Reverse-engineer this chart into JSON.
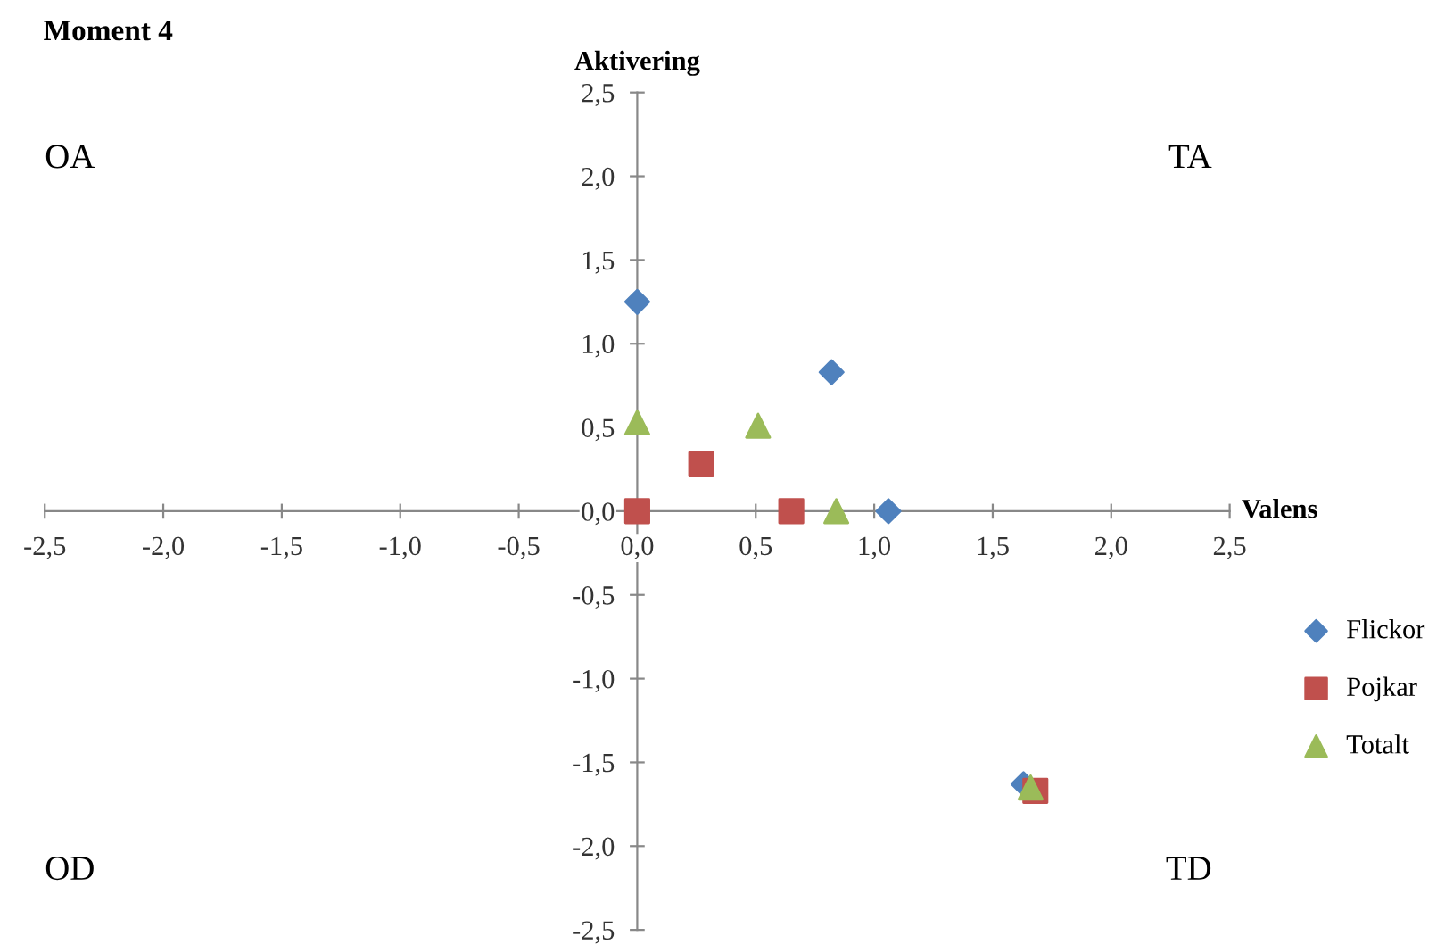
{
  "chart_data": {
    "type": "scatter",
    "title": "Moment 4",
    "xlabel": "Valens",
    "ylabel": "Aktivering",
    "annotations": [
      "OA",
      "TA",
      "OD",
      "TD"
    ],
    "xlim": [
      -2.5,
      2.5
    ],
    "ylim": [
      -2.5,
      2.5
    ],
    "xticks": [
      {
        "value": -2.5,
        "label": "-2,5"
      },
      {
        "value": -2.0,
        "label": "-2,0"
      },
      {
        "value": -1.5,
        "label": "-1,5"
      },
      {
        "value": -1.0,
        "label": "-1,0"
      },
      {
        "value": -0.5,
        "label": "-0,5"
      },
      {
        "value": 0,
        "label": "0,0"
      },
      {
        "value": 0.5,
        "label": "0,5"
      },
      {
        "value": 1.0,
        "label": "1,0"
      },
      {
        "value": 1.5,
        "label": "1,5"
      },
      {
        "value": 2.0,
        "label": "2,0"
      },
      {
        "value": 2.5,
        "label": "2,5"
      }
    ],
    "yticks": [
      {
        "value": -2.5,
        "label": "-2,5"
      },
      {
        "value": -2.0,
        "label": "-2,0"
      },
      {
        "value": -1.5,
        "label": "-1,5"
      },
      {
        "value": -1.0,
        "label": "-1,0"
      },
      {
        "value": -0.5,
        "label": "-0,5"
      },
      {
        "value": 0,
        "label": "0,0"
      },
      {
        "value": 0.5,
        "label": "0,5"
      },
      {
        "value": 1.0,
        "label": "1,0"
      },
      {
        "value": 1.5,
        "label": "1,5"
      },
      {
        "value": 2.0,
        "label": "2,0"
      },
      {
        "value": 2.5,
        "label": "2,5"
      }
    ],
    "grid": false,
    "legend": "right",
    "series": [
      {
        "name": "Flickor",
        "color": "#4f81bd",
        "marker": "diamond",
        "x": [
          0,
          0.82,
          1.06,
          1.63
        ],
        "values": [
          1.25,
          0.83,
          0,
          -1.63
        ]
      },
      {
        "name": "Pojkar",
        "color": "#c0504d",
        "marker": "square",
        "x": [
          0,
          0.27,
          0.65,
          1.68
        ],
        "values": [
          0,
          0.28,
          0,
          -1.67
        ]
      },
      {
        "name": "Totalt",
        "color": "#9bbb59",
        "marker": "triangle",
        "x": [
          0,
          0.51,
          0.84,
          1.66
        ],
        "values": [
          0.53,
          0.51,
          0,
          -1.65
        ]
      }
    ]
  }
}
